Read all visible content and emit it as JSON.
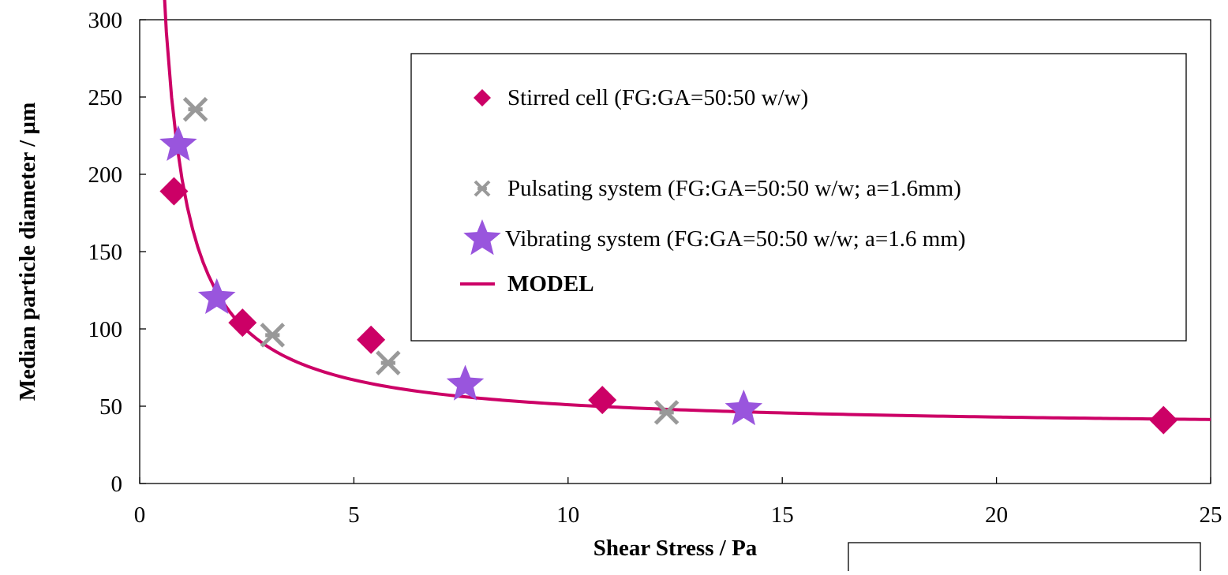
{
  "chart_data": {
    "type": "scatter",
    "xlabel": "Shear Stress   /   Pa",
    "ylabel": "Median particle diameter / µm",
    "xlim": [
      0,
      25
    ],
    "ylim": [
      0,
      300
    ],
    "x_ticks": [
      0,
      5,
      10,
      15,
      20,
      25
    ],
    "y_ticks": [
      0,
      50,
      100,
      150,
      200,
      250,
      300
    ],
    "grid": false,
    "legend_position": "top-right",
    "series": [
      {
        "name": "Stirred cell (FG:GA=50:50 w/w)",
        "marker": "diamond",
        "color": "#CC0066",
        "points": [
          [
            0.8,
            189
          ],
          [
            2.4,
            104
          ],
          [
            5.4,
            93
          ],
          [
            10.8,
            54
          ],
          [
            23.9,
            41
          ]
        ]
      },
      {
        "name": "Pulsating system (FG:GA=50:50 w/w; a=1.6mm)",
        "marker": "asterisk",
        "color": "#999999",
        "points": [
          [
            1.3,
            242
          ],
          [
            3.1,
            96
          ],
          [
            5.8,
            78
          ],
          [
            12.3,
            46
          ]
        ]
      },
      {
        "name": "Vibrating system (FG:GA=50:50 w/w; a=1.6 mm)",
        "marker": "star",
        "color": "#9955DD",
        "points": [
          [
            0.9,
            219
          ],
          [
            1.8,
            120
          ],
          [
            7.6,
            64
          ],
          [
            14.1,
            48
          ]
        ]
      },
      {
        "name": "MODEL",
        "marker": "line",
        "color": "#CC0066",
        "fit": {
          "a": 160,
          "b": 35,
          "x_start": 0.5,
          "x_end": 25
        }
      }
    ]
  }
}
